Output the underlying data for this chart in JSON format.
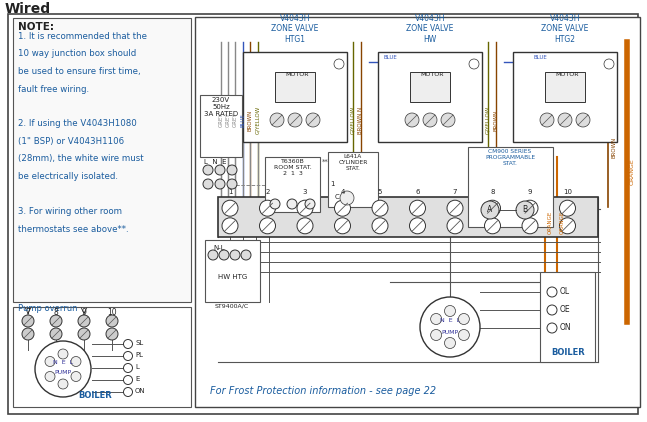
{
  "title": "Wired",
  "bg_color": "#ffffff",
  "note_text": "NOTE:",
  "note_lines": [
    "1. It is recommended that the",
    "10 way junction box should",
    "be used to ensure first time,",
    "fault free wiring.",
    "",
    "2. If using the V4043H1080",
    "(1\" BSP) or V4043H1106",
    "(28mm), the white wire must",
    "be electrically isolated.",
    "",
    "3. For wiring other room",
    "thermostats see above**."
  ],
  "wire_colors": {
    "grey": "#888888",
    "blue": "#3355bb",
    "brown": "#884400",
    "gyellow": "#666600",
    "orange": "#cc6600",
    "black": "#333333",
    "dkgrey": "#555555"
  },
  "frost_text": "For Frost Protection information - see page 22"
}
